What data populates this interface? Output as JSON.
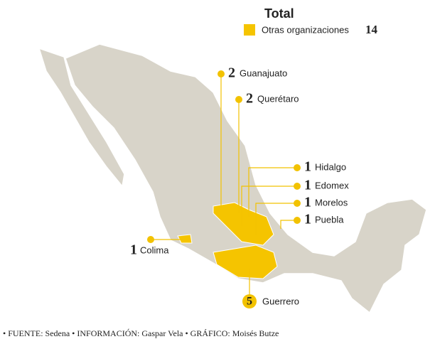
{
  "title": "Total",
  "legend": {
    "label": "Otras organizaciones",
    "total": 14
  },
  "states": [
    {
      "name": "Guanajuato",
      "count": 2
    },
    {
      "name": "Querétaro",
      "count": 2
    },
    {
      "name": "Hidalgo",
      "count": 1
    },
    {
      "name": "Edomex",
      "count": 1
    },
    {
      "name": "Morelos",
      "count": 1
    },
    {
      "name": "Puebla",
      "count": 1
    },
    {
      "name": "Colima",
      "count": 1
    },
    {
      "name": "Guerrero",
      "count": 5
    }
  ],
  "source": "• FUENTE: Sedena • INFORMACIÓN: Gaspar Vela • GRÁFICO: Moisés Butze"
}
